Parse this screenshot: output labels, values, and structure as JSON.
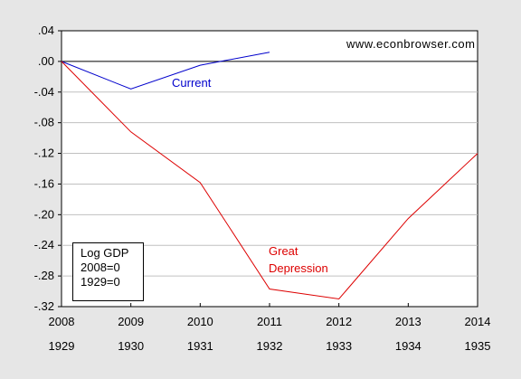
{
  "chart_data": {
    "type": "line",
    "title": "",
    "xlabel": "",
    "ylabel": "",
    "x_top_labels": [
      "2008",
      "2009",
      "2010",
      "2011",
      "2012",
      "2013",
      "2014"
    ],
    "x_bottom_labels": [
      "1929",
      "1930",
      "1931",
      "1932",
      "1933",
      "1934",
      "1935"
    ],
    "y_ticks": [
      0.04,
      0.0,
      -0.04,
      -0.08,
      -0.12,
      -0.16,
      -0.2,
      -0.24,
      -0.28,
      -0.32
    ],
    "y_tick_labels": [
      ".04",
      ".00",
      "-.04",
      "-.08",
      "-.12",
      "-.16",
      "-.20",
      "-.24",
      "-.28",
      "-.32"
    ],
    "ylim": [
      -0.32,
      0.04
    ],
    "xlim": [
      0,
      6
    ],
    "grid": true,
    "zero_line": 0.0,
    "series": [
      {
        "name": "Current",
        "color": "#0000cc",
        "x": [
          0,
          1,
          2,
          3
        ],
        "values": [
          0.0,
          -0.036,
          -0.005,
          0.012
        ]
      },
      {
        "name": "Great Depression",
        "color": "#dd0000",
        "x": [
          0,
          1,
          2,
          3,
          4,
          5,
          6
        ],
        "values": [
          0.0,
          -0.092,
          -0.158,
          -0.297,
          -0.31,
          -0.205,
          -0.12
        ]
      }
    ],
    "annotations": {
      "watermark": "www.econbrowser.com",
      "current_label": "Current",
      "depression_label_line1": "Great",
      "depression_label_line2": "Depression",
      "note_line1": "Log GDP",
      "note_line2": "2008=0",
      "note_line3": "1929=0"
    }
  }
}
